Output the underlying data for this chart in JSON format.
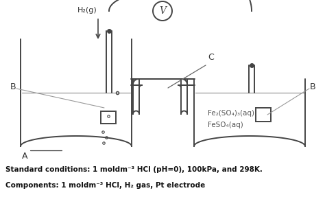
{
  "background_color": "#ffffff",
  "line_color": "#444444",
  "gray_color": "#888888",
  "light_gray": "#aaaaaa",
  "standard_conditions": "Standard conditions: 1 moldm⁻³ HCl (pH=0), 100kPa, and 298K.",
  "components": "Components: 1 moldm⁻³ HCl, H₂ gas, Pt electrode",
  "label_H2g": "H₂(g)",
  "label_C": "C",
  "label_B_left": "B",
  "label_B_right": "B",
  "label_A": "A",
  "label_V": "V",
  "fe_label1": "Fe₂(SO₄)₃(aq)",
  "fe_label2": "FeSO₄(aq)",
  "figw": 4.74,
  "figh": 3.16,
  "dpi": 100
}
